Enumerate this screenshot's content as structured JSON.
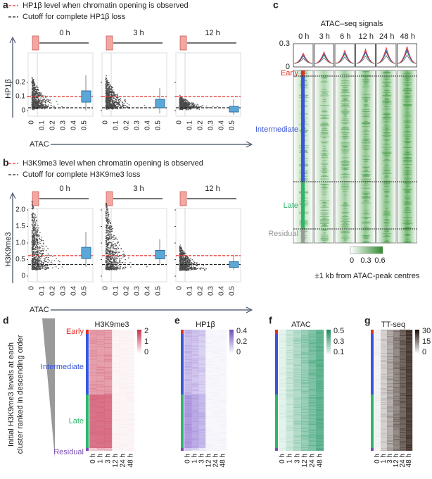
{
  "panel_a": {
    "letter": "a",
    "legend": [
      "HP1β level when chromatin opening is observed",
      "Cutoff for complete HP1β loss"
    ],
    "ylabel": "HP1β",
    "xlabel": "ATAC",
    "times": [
      "0 h",
      "3 h",
      "12 h"
    ],
    "yticks": [
      "0",
      "0.1",
      "0.2"
    ],
    "xticks": [
      "0",
      "0.1",
      "0.2",
      "0.3",
      "0.4",
      "0.5"
    ]
  },
  "panel_b": {
    "letter": "b",
    "legend": [
      "H3K9me3 level when chromatin opening is observed",
      "Cutoff for complete H3K9me3 loss"
    ],
    "ylabel": "H3K9me3",
    "xlabel": "ATAC",
    "times": [
      "0 h",
      "3 h",
      "12 h"
    ],
    "yticks": [
      "0",
      "0.5",
      "1.0",
      "1.5",
      "2.0"
    ],
    "xticks": [
      "0",
      "0.1",
      "0.2",
      "0.3",
      "0.4",
      "0.5"
    ]
  },
  "panel_c": {
    "letter": "c",
    "title": "ATAC–seq signals",
    "times": [
      "0 h",
      "3 h",
      "6 h",
      "12 h",
      "24 h",
      "48 h"
    ],
    "yticks": [
      "0.3",
      "0"
    ],
    "clusters": [
      "Early",
      "Intermediate",
      "Late",
      "Residual"
    ],
    "colorbar_ticks": [
      "0",
      "0.3",
      "0.6"
    ],
    "caption": "±1 kb from ATAC-peak centres"
  },
  "panel_d": {
    "letter": "d",
    "side_label": [
      "Initial H3K9me3 levels at each",
      "cluster ranked in descending order"
    ],
    "title": "H3K9me3",
    "clusters": [
      "Early",
      "Intermediate",
      "Late",
      "Residual"
    ],
    "colorbar_ticks": [
      "2",
      "1",
      "0"
    ],
    "times": [
      "0 h",
      "1 h",
      "3 h",
      "12 h",
      "24 h",
      "48 h"
    ]
  },
  "panel_e": {
    "letter": "e",
    "title": "HP1β",
    "colorbar_ticks": [
      "0.4",
      "0.2",
      "0"
    ],
    "times": [
      "0 h",
      "1 h",
      "3 h",
      "12 h",
      "24 h",
      "48 h"
    ]
  },
  "panel_f": {
    "letter": "f",
    "title": "ATAC",
    "colorbar_ticks": [
      "0.5",
      "0.3",
      "0.1"
    ],
    "times": [
      "0 h",
      "1 h",
      "3 h",
      "12 h",
      "24 h",
      "48 h"
    ]
  },
  "panel_g": {
    "letter": "g",
    "title": "TT-seq",
    "colorbar_ticks": [
      "30",
      "15",
      "0"
    ],
    "times": [
      "0 h",
      "1 h",
      "3 h",
      "12 h",
      "24 h",
      "48 h"
    ]
  }
}
